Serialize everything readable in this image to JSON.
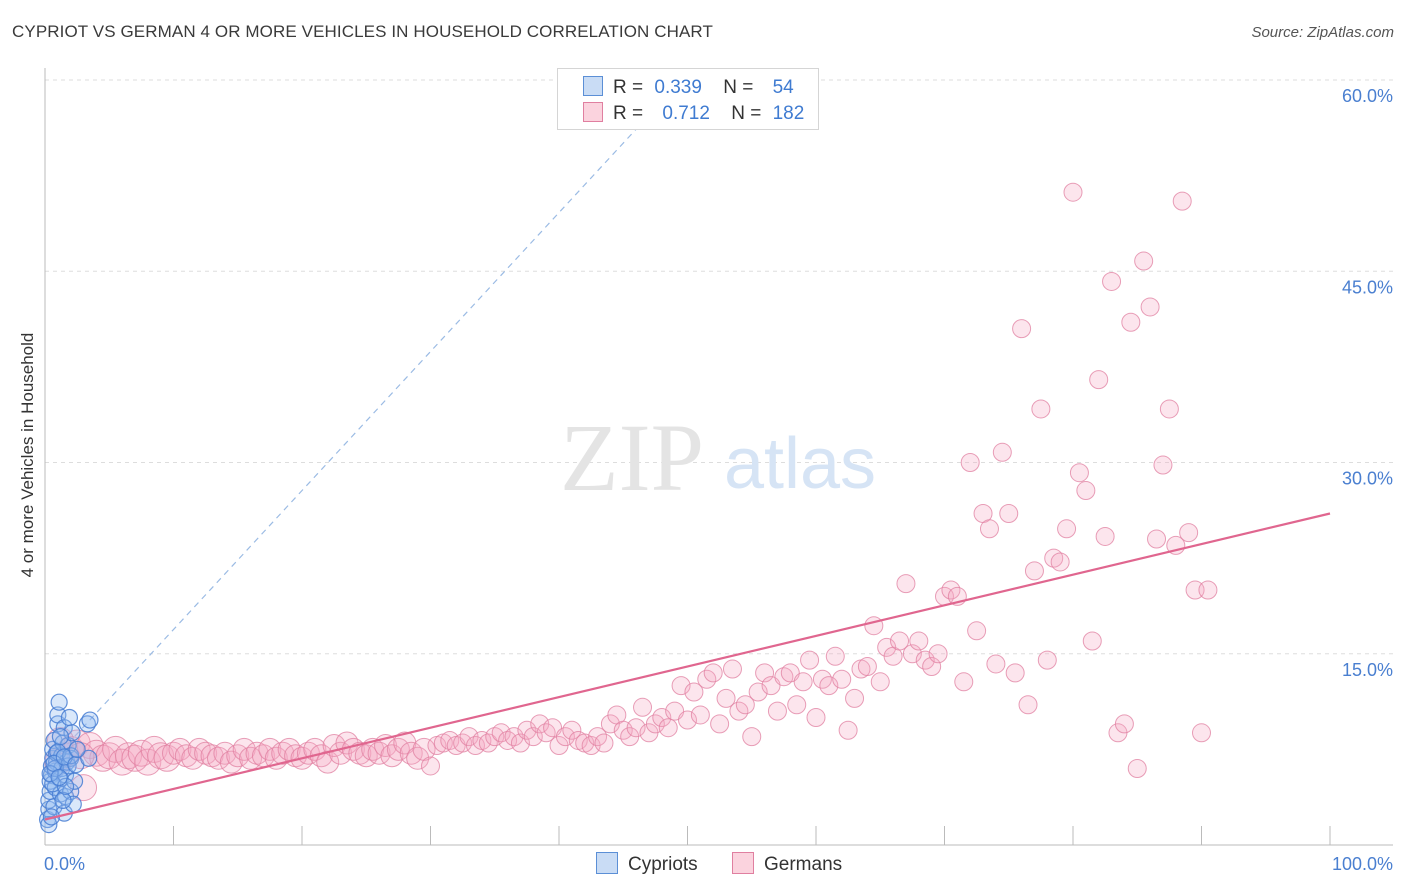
{
  "title": "CYPRIOT VS GERMAN 4 OR MORE VEHICLES IN HOUSEHOLD CORRELATION CHART",
  "source": "Source: ZipAtlas.com",
  "watermark": {
    "zip": "ZIP",
    "atlas": "atlas"
  },
  "legend": {
    "cypriots": {
      "r_label": "R =",
      "r_value": "0.339",
      "n_label": "N =",
      "n_value": "54",
      "color": "#a8c8f0",
      "edge": "#5b8fd6"
    },
    "germans": {
      "r_label": "R =",
      "r_value": "0.712",
      "n_label": "N =",
      "n_value": "182",
      "color": "#f8b8ca",
      "edge": "#e07fa0"
    }
  },
  "bottom_legend": {
    "cypriots": "Cypriots",
    "germans": "Germans"
  },
  "chart_data": {
    "type": "scatter",
    "title": "CYPRIOT VS GERMAN 4 OR MORE VEHICLES IN HOUSEHOLD CORRELATION CHART",
    "xlabel": "",
    "ylabel": "4 or more Vehicles in Household",
    "xlim": [
      0,
      100
    ],
    "ylim": [
      0,
      60
    ],
    "x_tick_labels": [
      "0.0%",
      "100.0%"
    ],
    "y_ticks": [
      15,
      30,
      45,
      60
    ],
    "y_tick_labels": [
      "15.0%",
      "30.0%",
      "45.0%",
      "60.0%"
    ],
    "grid": true,
    "series": [
      {
        "name": "Cypriots",
        "color": "#5b8fd6",
        "trend": {
          "x": [
            0,
            50
          ],
          "y": [
            6.0,
            60.5
          ],
          "style": "dashed"
        },
        "points": [
          [
            0.2,
            2.0
          ],
          [
            0.3,
            2.8
          ],
          [
            0.3,
            3.5
          ],
          [
            0.4,
            4.2
          ],
          [
            0.4,
            5.0
          ],
          [
            0.5,
            5.5
          ],
          [
            0.5,
            6.2
          ],
          [
            0.6,
            6.8
          ],
          [
            0.6,
            7.5
          ],
          [
            0.7,
            8.2
          ],
          [
            0.7,
            3.0
          ],
          [
            0.8,
            4.5
          ],
          [
            0.8,
            5.8
          ],
          [
            0.9,
            6.5
          ],
          [
            0.9,
            7.2
          ],
          [
            1.0,
            9.5
          ],
          [
            1.0,
            10.2
          ],
          [
            1.1,
            11.2
          ],
          [
            1.2,
            4.0
          ],
          [
            1.2,
            5.2
          ],
          [
            1.3,
            6.0
          ],
          [
            1.3,
            7.0
          ],
          [
            1.4,
            8.0
          ],
          [
            1.5,
            9.2
          ],
          [
            1.5,
            2.5
          ],
          [
            1.6,
            3.8
          ],
          [
            1.6,
            5.5
          ],
          [
            1.7,
            6.5
          ],
          [
            1.8,
            7.8
          ],
          [
            1.9,
            10.0
          ],
          [
            2.0,
            4.2
          ],
          [
            2.0,
            6.8
          ],
          [
            2.1,
            8.8
          ],
          [
            2.2,
            3.2
          ],
          [
            2.3,
            5.0
          ],
          [
            0.3,
            1.6
          ],
          [
            0.5,
            2.2
          ],
          [
            0.6,
            4.8
          ],
          [
            0.8,
            6.0
          ],
          [
            1.0,
            7.3
          ],
          [
            1.2,
            8.5
          ],
          [
            1.4,
            3.5
          ],
          [
            1.6,
            4.6
          ],
          [
            1.8,
            6.2
          ],
          [
            2.0,
            7.0
          ],
          [
            0.4,
            5.6
          ],
          [
            0.7,
            6.4
          ],
          [
            1.1,
            5.3
          ],
          [
            1.5,
            6.9
          ],
          [
            2.4,
            6.3
          ],
          [
            3.3,
            9.5
          ],
          [
            3.4,
            6.8
          ],
          [
            3.5,
            9.8
          ],
          [
            2.5,
            7.5
          ]
        ]
      },
      {
        "name": "Germans",
        "color": "#e07fa0",
        "trend": {
          "x": [
            0,
            100
          ],
          "y": [
            2.0,
            26.0
          ],
          "style": "solid"
        },
        "points": [
          [
            1.0,
            6.5
          ],
          [
            1.5,
            7.0
          ],
          [
            2.0,
            7.5
          ],
          [
            2.5,
            8.0
          ],
          [
            3.0,
            4.5
          ],
          [
            3.5,
            7.8
          ],
          [
            4.0,
            7.2
          ],
          [
            4.5,
            6.8
          ],
          [
            5.0,
            7.0
          ],
          [
            5.5,
            7.5
          ],
          [
            6.0,
            6.5
          ],
          [
            6.5,
            7.0
          ],
          [
            7.0,
            6.8
          ],
          [
            7.5,
            7.2
          ],
          [
            8.0,
            6.5
          ],
          [
            8.5,
            7.5
          ],
          [
            9.0,
            7.0
          ],
          [
            9.5,
            6.8
          ],
          [
            10.0,
            7.2
          ],
          [
            10.5,
            7.5
          ],
          [
            11.0,
            7.0
          ],
          [
            11.5,
            6.8
          ],
          [
            12.0,
            7.5
          ],
          [
            12.5,
            7.2
          ],
          [
            13.0,
            7.0
          ],
          [
            13.5,
            6.8
          ],
          [
            14.0,
            7.2
          ],
          [
            14.5,
            6.5
          ],
          [
            15.0,
            7.0
          ],
          [
            15.5,
            7.5
          ],
          [
            16.0,
            6.8
          ],
          [
            16.5,
            7.2
          ],
          [
            17.0,
            7.0
          ],
          [
            17.5,
            7.5
          ],
          [
            18.0,
            6.8
          ],
          [
            18.5,
            7.2
          ],
          [
            19.0,
            7.5
          ],
          [
            19.5,
            7.0
          ],
          [
            20.0,
            6.8
          ],
          [
            20.5,
            7.2
          ],
          [
            21.0,
            7.5
          ],
          [
            21.5,
            7.0
          ],
          [
            22.0,
            6.5
          ],
          [
            22.5,
            7.8
          ],
          [
            23.0,
            7.2
          ],
          [
            23.5,
            8.0
          ],
          [
            24.0,
            7.5
          ],
          [
            24.5,
            7.2
          ],
          [
            25.0,
            7.0
          ],
          [
            25.5,
            7.5
          ],
          [
            26.0,
            7.2
          ],
          [
            26.5,
            7.8
          ],
          [
            27.0,
            7.0
          ],
          [
            27.5,
            7.5
          ],
          [
            28.0,
            8.0
          ],
          [
            28.5,
            7.2
          ],
          [
            29.0,
            6.8
          ],
          [
            29.5,
            7.5
          ],
          [
            30.0,
            6.2
          ],
          [
            30.5,
            7.8
          ],
          [
            31.0,
            8.0
          ],
          [
            31.5,
            8.2
          ],
          [
            32.0,
            7.8
          ],
          [
            32.5,
            8.0
          ],
          [
            33.0,
            8.5
          ],
          [
            33.5,
            7.8
          ],
          [
            34.0,
            8.2
          ],
          [
            34.5,
            8.0
          ],
          [
            35.0,
            8.5
          ],
          [
            35.5,
            8.8
          ],
          [
            36.0,
            8.2
          ],
          [
            36.5,
            8.5
          ],
          [
            37.0,
            8.0
          ],
          [
            37.5,
            9.0
          ],
          [
            38.0,
            8.5
          ],
          [
            38.5,
            9.5
          ],
          [
            39.0,
            8.8
          ],
          [
            39.5,
            9.2
          ],
          [
            40.0,
            7.8
          ],
          [
            40.5,
            8.5
          ],
          [
            41.0,
            9.0
          ],
          [
            41.5,
            8.2
          ],
          [
            42.0,
            8.0
          ],
          [
            42.5,
            7.8
          ],
          [
            43.0,
            8.5
          ],
          [
            43.5,
            8.0
          ],
          [
            44.0,
            9.5
          ],
          [
            44.5,
            10.2
          ],
          [
            45.0,
            9.0
          ],
          [
            45.5,
            8.5
          ],
          [
            46.0,
            9.2
          ],
          [
            46.5,
            10.8
          ],
          [
            47.0,
            8.8
          ],
          [
            47.5,
            9.5
          ],
          [
            48.0,
            10.0
          ],
          [
            48.5,
            9.2
          ],
          [
            49.0,
            10.5
          ],
          [
            49.5,
            12.5
          ],
          [
            50.0,
            9.8
          ],
          [
            50.5,
            12.0
          ],
          [
            51.0,
            10.2
          ],
          [
            51.5,
            13.0
          ],
          [
            52.0,
            13.5
          ],
          [
            52.5,
            9.5
          ],
          [
            53.0,
            11.5
          ],
          [
            53.5,
            13.8
          ],
          [
            54.0,
            10.5
          ],
          [
            54.5,
            11.0
          ],
          [
            55.0,
            8.5
          ],
          [
            55.5,
            12.0
          ],
          [
            56.0,
            13.5
          ],
          [
            56.5,
            12.5
          ],
          [
            57.0,
            10.5
          ],
          [
            57.5,
            13.2
          ],
          [
            58.0,
            13.5
          ],
          [
            58.5,
            11.0
          ],
          [
            59.0,
            12.8
          ],
          [
            59.5,
            14.5
          ],
          [
            60.0,
            10.0
          ],
          [
            60.5,
            13.0
          ],
          [
            61.0,
            12.5
          ],
          [
            61.5,
            14.8
          ],
          [
            62.0,
            13.0
          ],
          [
            62.5,
            9.0
          ],
          [
            63.0,
            11.5
          ],
          [
            63.5,
            13.8
          ],
          [
            64.0,
            14.0
          ],
          [
            64.5,
            17.2
          ],
          [
            65.0,
            12.8
          ],
          [
            65.5,
            15.5
          ],
          [
            66.0,
            14.8
          ],
          [
            66.5,
            16.0
          ],
          [
            67.0,
            20.5
          ],
          [
            67.5,
            15.0
          ],
          [
            68.0,
            16.0
          ],
          [
            68.5,
            14.5
          ],
          [
            69.0,
            14.0
          ],
          [
            69.5,
            15.0
          ],
          [
            70.0,
            19.5
          ],
          [
            70.5,
            20.0
          ],
          [
            71.0,
            19.5
          ],
          [
            71.5,
            12.8
          ],
          [
            72.0,
            30.0
          ],
          [
            72.5,
            16.8
          ],
          [
            73.0,
            26.0
          ],
          [
            73.5,
            24.8
          ],
          [
            74.0,
            14.2
          ],
          [
            74.5,
            30.8
          ],
          [
            75.0,
            26.0
          ],
          [
            75.5,
            13.5
          ],
          [
            76.0,
            40.5
          ],
          [
            76.5,
            11.0
          ],
          [
            77.0,
            21.5
          ],
          [
            77.5,
            34.2
          ],
          [
            78.0,
            14.5
          ],
          [
            78.5,
            22.5
          ],
          [
            79.0,
            22.2
          ],
          [
            79.5,
            24.8
          ],
          [
            80.0,
            51.2
          ],
          [
            80.5,
            29.2
          ],
          [
            81.0,
            27.8
          ],
          [
            81.5,
            16.0
          ],
          [
            82.0,
            36.5
          ],
          [
            82.5,
            24.2
          ],
          [
            83.0,
            44.2
          ],
          [
            83.5,
            8.8
          ],
          [
            84.0,
            9.5
          ],
          [
            84.5,
            41.0
          ],
          [
            85.0,
            6.0
          ],
          [
            85.5,
            45.8
          ],
          [
            86.0,
            42.2
          ],
          [
            86.5,
            24.0
          ],
          [
            87.0,
            29.8
          ],
          [
            87.5,
            34.2
          ],
          [
            88.0,
            23.5
          ],
          [
            88.5,
            50.5
          ],
          [
            89.0,
            24.5
          ],
          [
            89.5,
            20.0
          ],
          [
            90.0,
            8.8
          ],
          [
            90.5,
            20.0
          ],
          [
            1.2,
            8.2
          ],
          [
            2.8,
            7.0
          ]
        ]
      }
    ]
  }
}
